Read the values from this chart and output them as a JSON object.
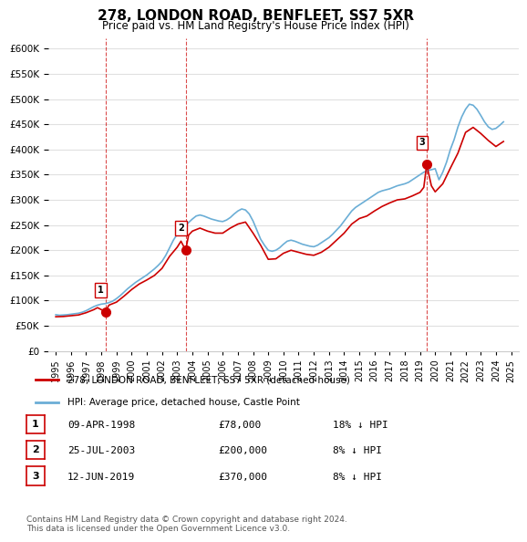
{
  "title": "278, LONDON ROAD, BENFLEET, SS7 5XR",
  "subtitle": "Price paid vs. HM Land Registry's House Price Index (HPI)",
  "ylabel_format": "£{0}K",
  "yticks": [
    0,
    50000,
    100000,
    150000,
    200000,
    250000,
    300000,
    350000,
    400000,
    450000,
    500000,
    550000,
    600000
  ],
  "xlim_start": 1994.5,
  "xlim_end": 2025.5,
  "ylim_min": 0,
  "ylim_max": 620000,
  "background_color": "#ffffff",
  "grid_color": "#e0e0e0",
  "hpi_color": "#6baed6",
  "price_color": "#cc0000",
  "purchases": [
    {
      "year": 1998.27,
      "price": 78000,
      "label": "1"
    },
    {
      "year": 2003.56,
      "price": 200000,
      "label": "2"
    },
    {
      "year": 2019.44,
      "price": 370000,
      "label": "3"
    }
  ],
  "vline_years": [
    1998.27,
    2003.56,
    2019.44
  ],
  "legend_price_label": "278, LONDON ROAD, BENFLEET, SS7 5XR (detached house)",
  "legend_hpi_label": "HPI: Average price, detached house, Castle Point",
  "table_rows": [
    {
      "num": "1",
      "date": "09-APR-1998",
      "price": "£78,000",
      "change": "18% ↓ HPI"
    },
    {
      "num": "2",
      "date": "25-JUL-2003",
      "price": "£200,000",
      "change": "8% ↓ HPI"
    },
    {
      "num": "3",
      "date": "12-JUN-2019",
      "price": "£370,000",
      "change": "8% ↓ HPI"
    }
  ],
  "footnote": "Contains HM Land Registry data © Crown copyright and database right 2024.\nThis data is licensed under the Open Government Licence v3.0.",
  "hpi_data": {
    "years": [
      1995,
      1995.25,
      1995.5,
      1995.75,
      1996,
      1996.25,
      1996.5,
      1996.75,
      1997,
      1997.25,
      1997.5,
      1997.75,
      1998,
      1998.25,
      1998.5,
      1998.75,
      1999,
      1999.25,
      1999.5,
      1999.75,
      2000,
      2000.25,
      2000.5,
      2000.75,
      2001,
      2001.25,
      2001.5,
      2001.75,
      2002,
      2002.25,
      2002.5,
      2002.75,
      2003,
      2003.25,
      2003.5,
      2003.75,
      2004,
      2004.25,
      2004.5,
      2004.75,
      2005,
      2005.25,
      2005.5,
      2005.75,
      2006,
      2006.25,
      2006.5,
      2006.75,
      2007,
      2007.25,
      2007.5,
      2007.75,
      2008,
      2008.25,
      2008.5,
      2008.75,
      2009,
      2009.25,
      2009.5,
      2009.75,
      2010,
      2010.25,
      2010.5,
      2010.75,
      2011,
      2011.25,
      2011.5,
      2011.75,
      2012,
      2012.25,
      2012.5,
      2012.75,
      2013,
      2013.25,
      2013.5,
      2013.75,
      2014,
      2014.25,
      2014.5,
      2014.75,
      2015,
      2015.25,
      2015.5,
      2015.75,
      2016,
      2016.25,
      2016.5,
      2016.75,
      2017,
      2017.25,
      2017.5,
      2017.75,
      2018,
      2018.25,
      2018.5,
      2018.75,
      2019,
      2019.25,
      2019.5,
      2019.75,
      2020,
      2020.25,
      2020.5,
      2020.75,
      2021,
      2021.25,
      2021.5,
      2021.75,
      2022,
      2022.25,
      2022.5,
      2022.75,
      2023,
      2023.25,
      2023.5,
      2023.75,
      2024,
      2024.25,
      2024.5
    ],
    "values": [
      72000,
      71000,
      71500,
      72000,
      73000,
      74000,
      75000,
      77000,
      80000,
      84000,
      88000,
      91000,
      93000,
      94000,
      96000,
      99000,
      104000,
      110000,
      117000,
      124000,
      130000,
      136000,
      141000,
      146000,
      151000,
      157000,
      163000,
      170000,
      178000,
      190000,
      205000,
      220000,
      232000,
      240000,
      248000,
      255000,
      262000,
      268000,
      270000,
      268000,
      265000,
      262000,
      260000,
      258000,
      257000,
      260000,
      265000,
      272000,
      278000,
      282000,
      280000,
      272000,
      258000,
      240000,
      222000,
      210000,
      200000,
      198000,
      200000,
      205000,
      212000,
      218000,
      220000,
      218000,
      215000,
      212000,
      210000,
      208000,
      207000,
      210000,
      215000,
      220000,
      225000,
      232000,
      240000,
      248000,
      258000,
      268000,
      278000,
      285000,
      290000,
      295000,
      300000,
      305000,
      310000,
      315000,
      318000,
      320000,
      322000,
      325000,
      328000,
      330000,
      332000,
      335000,
      340000,
      345000,
      350000,
      355000,
      358000,
      360000,
      362000,
      340000,
      355000,
      375000,
      400000,
      420000,
      445000,
      465000,
      480000,
      490000,
      488000,
      480000,
      468000,
      455000,
      445000,
      440000,
      442000,
      448000,
      455000
    ]
  },
  "price_line_data": {
    "years": [
      1995,
      1995.5,
      1996,
      1996.5,
      1997,
      1997.5,
      1997.75,
      1998.27,
      1998.5,
      1999,
      1999.5,
      2000,
      2000.5,
      2001,
      2001.5,
      2002,
      2002.5,
      2003,
      2003.25,
      2003.56,
      2003.75,
      2004,
      2004.5,
      2005,
      2005.5,
      2006,
      2006.5,
      2007,
      2007.5,
      2008,
      2008.5,
      2009,
      2009.5,
      2010,
      2010.5,
      2011,
      2011.5,
      2012,
      2012.5,
      2013,
      2013.5,
      2014,
      2014.5,
      2015,
      2015.5,
      2016,
      2016.5,
      2017,
      2017.5,
      2018,
      2018.5,
      2019,
      2019.25,
      2019.44,
      2019.75,
      2020,
      2020.5,
      2021,
      2021.5,
      2022,
      2022.5,
      2023,
      2023.5,
      2024,
      2024.5
    ],
    "values": [
      68000,
      68500,
      70000,
      71500,
      76000,
      82000,
      86000,
      78000,
      91000,
      97000,
      109000,
      122000,
      133000,
      141000,
      150000,
      164000,
      188000,
      206000,
      218000,
      200000,
      230000,
      238000,
      244000,
      238000,
      234000,
      234000,
      244000,
      252000,
      256000,
      234000,
      210000,
      182000,
      183000,
      194000,
      200000,
      196000,
      192000,
      190000,
      196000,
      206000,
      220000,
      234000,
      252000,
      263000,
      268000,
      278000,
      287000,
      294000,
      300000,
      302000,
      308000,
      315000,
      325000,
      370000,
      328000,
      316000,
      332000,
      363000,
      393000,
      434000,
      444000,
      432000,
      418000,
      406000,
      416000
    ]
  }
}
